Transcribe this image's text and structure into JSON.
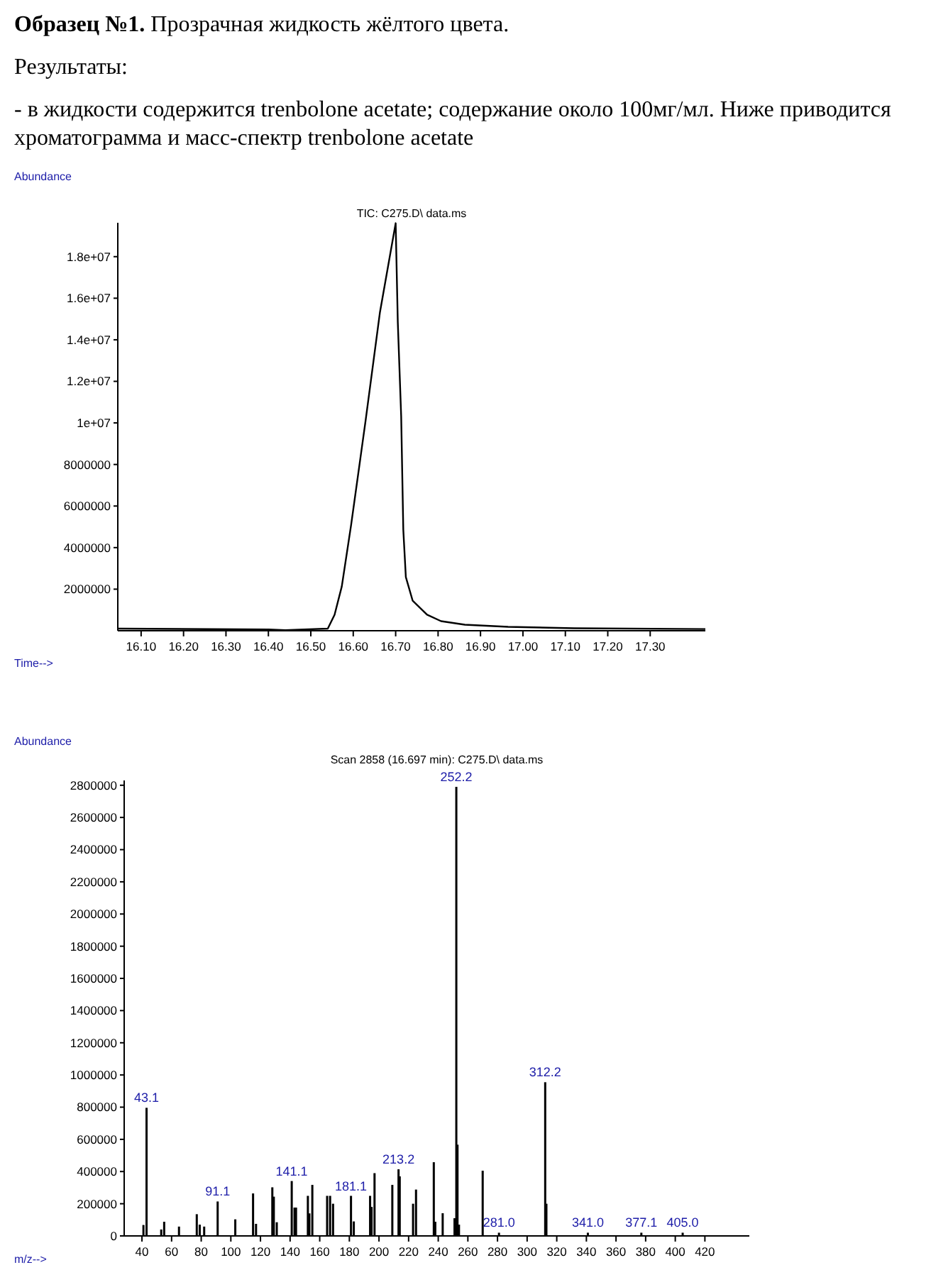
{
  "chart_data": [
    {
      "type": "other",
      "title": "Образец №1.",
      "subtitle": "Прозрачная жидкость жёлтого цвета.",
      "annotations": [
        "Результаты:",
        "- в жидкости содержится trenbolone acetate; содержание около 100мг/мл. Ниже приводится хроматограмма и масс-спектр trenbolone acetate"
      ]
    },
    {
      "type": "line",
      "title": "TIC: C275.D\\ data.ms",
      "xlabel": "Time-->",
      "ylabel": "Abundance",
      "x": [
        16.045,
        16.4,
        16.44,
        16.54,
        16.556,
        16.573,
        16.595,
        16.629,
        16.663,
        16.7,
        16.705,
        16.713,
        16.718,
        16.724,
        16.74,
        16.774,
        16.807,
        16.863,
        16.965,
        17.121,
        17.43
      ],
      "series": [
        {
          "color": "#000000",
          "values": [
            100000,
            60000,
            30000,
            100000,
            770000,
            2130000,
            5090000,
            10090000,
            15330000,
            19610000,
            14870000,
            10320000,
            4860000,
            2580000,
            1450000,
            770000,
            460000,
            290000,
            190000,
            120000,
            80000
          ]
        }
      ],
      "xlim": [
        16.045,
        17.43
      ],
      "ylim": [
        0,
        19630000
      ],
      "xticks": [
        {
          "value": 16.1,
          "label": "16.10"
        },
        {
          "value": 16.2,
          "label": "16.20"
        },
        {
          "value": 16.3,
          "label": "16.30"
        },
        {
          "value": 16.4,
          "label": "16.40"
        },
        {
          "value": 16.5,
          "label": "16.50"
        },
        {
          "value": 16.6,
          "label": "16.60"
        },
        {
          "value": 16.7,
          "label": "16.70"
        },
        {
          "value": 16.8,
          "label": "16.80"
        },
        {
          "value": 16.9,
          "label": "16.90"
        },
        {
          "value": 17.0,
          "label": "17.00"
        },
        {
          "value": 17.1,
          "label": "17.10"
        },
        {
          "value": 17.2,
          "label": "17.20"
        },
        {
          "value": 17.3,
          "label": "17.30"
        }
      ],
      "yticks": [
        2000000,
        4000000,
        6000000,
        8000000,
        {
          "value": 10000000,
          "label": "1e+07"
        },
        {
          "value": 12000000,
          "label": "1.2e+07"
        },
        {
          "value": 14000000,
          "label": "1.4e+07"
        },
        {
          "value": 16000000,
          "label": "1.6e+07"
        },
        {
          "value": 18000000,
          "label": "1.8e+07"
        }
      ]
    },
    {
      "type": "bar",
      "title": "Scan 2858 (16.697 min): C275.D\\ data.ms",
      "xlabel": "m/z-->",
      "ylabel": "Abundance",
      "x": [
        41,
        43.1,
        53,
        55,
        65,
        77,
        79,
        82,
        91.1,
        103,
        115,
        117,
        128,
        129,
        131,
        141.1,
        143,
        144,
        152,
        153,
        155,
        165,
        167,
        169,
        181.1,
        183,
        194,
        195,
        197,
        209,
        213.2,
        214,
        223,
        225,
        237,
        238,
        243,
        251,
        252.2,
        253,
        254,
        270,
        281,
        312.2,
        313,
        341,
        377.1,
        405
      ],
      "series": [
        {
          "color": "#000000",
          "values": [
            68000,
            796000,
            40000,
            88000,
            58000,
            135000,
            70000,
            58000,
            214000,
            103000,
            264000,
            75000,
            302000,
            244000,
            85000,
            341000,
            176000,
            176000,
            249000,
            140000,
            317000,
            249000,
            249000,
            200000,
            249000,
            90000,
            249000,
            180000,
            390000,
            317000,
            414000,
            370000,
            200000,
            288000,
            458000,
            88000,
            141000,
            110000,
            2790000,
            567000,
            70000,
            405000,
            20000,
            955000,
            200000,
            20000,
            20000,
            20000
          ]
        }
      ],
      "xlim": [
        28,
        450
      ],
      "ylim": [
        0,
        2830000
      ],
      "xticks": [
        40,
        60,
        80,
        100,
        120,
        140,
        160,
        180,
        200,
        220,
        240,
        260,
        280,
        300,
        320,
        340,
        360,
        380,
        400,
        420
      ],
      "yticks": [
        0,
        200000,
        400000,
        600000,
        800000,
        1000000,
        1200000,
        1400000,
        1600000,
        1800000,
        2000000,
        2200000,
        2400000,
        2600000,
        2800000
      ],
      "annotations": [
        {
          "text": "43.1",
          "x": 43.1,
          "y": 796000
        },
        {
          "text": "91.1",
          "x": 91.1,
          "y": 214000
        },
        {
          "text": "141.1",
          "x": 141.1,
          "y": 341000
        },
        {
          "text": "181.1",
          "x": 181.1,
          "y": 249000
        },
        {
          "text": "213.2",
          "x": 213.2,
          "y": 414000
        },
        {
          "text": "252.2",
          "x": 252.2,
          "y": 2790000
        },
        {
          "text": "281.0",
          "x": 281,
          "y": 20000
        },
        {
          "text": "312.2",
          "x": 312.2,
          "y": 955000
        },
        {
          "text": "341.0",
          "x": 341,
          "y": 20000
        },
        {
          "text": "377.1",
          "x": 377.1,
          "y": 20000
        },
        {
          "text": "405.0",
          "x": 405,
          "y": 20000
        }
      ]
    }
  ]
}
